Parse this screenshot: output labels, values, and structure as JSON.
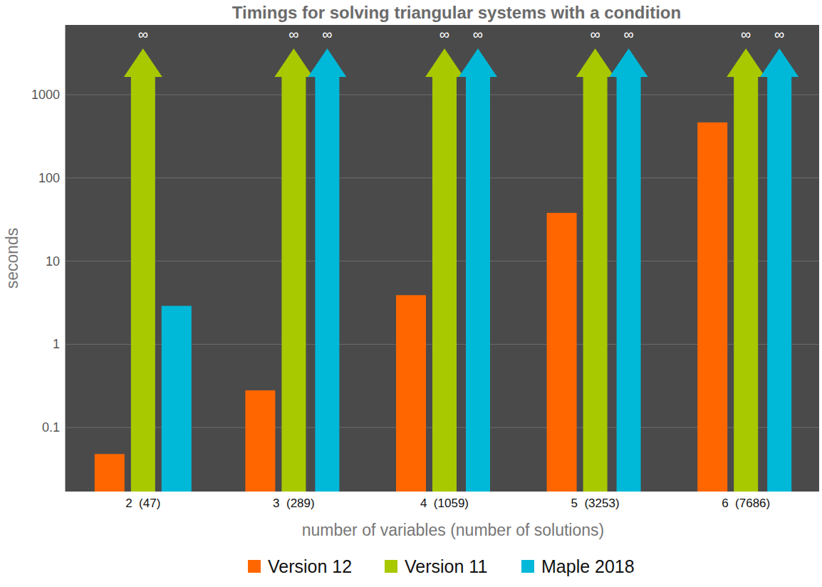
{
  "chart_data": {
    "type": "bar",
    "title": "Timings for solving triangular systems with a condition",
    "x_label": "number of variables (number of solutions)",
    "y_label": "seconds",
    "categories": [
      "2  (47)",
      "3  (289)",
      "4  (1059)",
      "5  (3253)",
      "6  (7686)"
    ],
    "series": [
      {
        "name": "Version 12",
        "color": "#ff6600",
        "values": [
          0.048,
          0.28,
          3.9,
          38,
          465
        ]
      },
      {
        "name": "Version 11",
        "color": "#a8c800",
        "values": [
          null,
          null,
          null,
          null,
          null
        ],
        "value_labels": [
          "∞",
          "∞",
          "∞",
          "∞",
          "∞"
        ]
      },
      {
        "name": "Maple 2018",
        "color": "#00b8d8",
        "values": [
          2.9,
          null,
          null,
          null,
          null
        ],
        "value_labels": [
          null,
          "∞",
          "∞",
          "∞",
          "∞"
        ]
      }
    ],
    "log": "y",
    "ylim": [
      0.017,
      6900
    ],
    "yticks": [
      0.1,
      1,
      10,
      100,
      1000
    ],
    "grid": true,
    "legend": "bottom"
  }
}
